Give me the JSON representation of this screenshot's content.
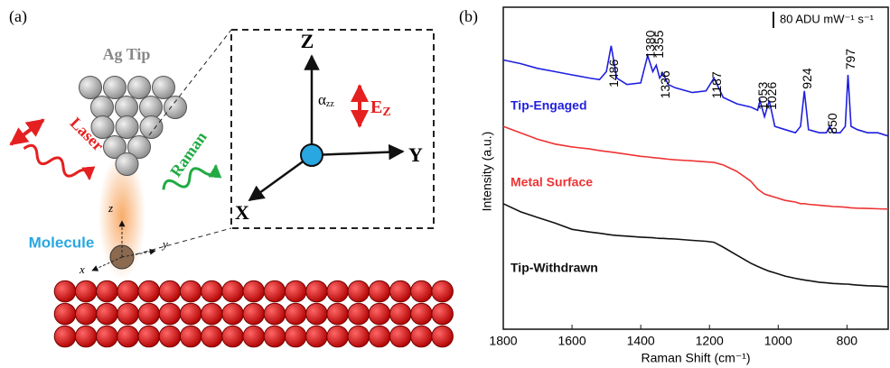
{
  "panel_a": {
    "label": "(a)",
    "tip": "Ag Tip",
    "laser": "Laser",
    "raman": "Raman",
    "molecule": "Molecule",
    "mol_axes": [
      "z",
      "y",
      "x"
    ],
    "frame_axes": [
      "Z",
      "Y",
      "X"
    ],
    "alpha": "α",
    "alpha_sub": "zz",
    "field": "E",
    "field_sub": "Z"
  },
  "chart_data": {
    "type": "line",
    "panel_label": "(b)",
    "xlabel": "Raman Shift (cm⁻¹)",
    "ylabel": "Intensity (a.u.)",
    "scale_bar": "80 ADU mW⁻¹ s⁻¹",
    "xlim": [
      1800,
      680
    ],
    "xticks": [
      1800,
      1600,
      1400,
      1200,
      1000,
      800
    ],
    "ylim": [
      0,
      100
    ],
    "peaks": [
      1486,
      1380,
      1355,
      1336,
      1187,
      1053,
      1026,
      924,
      850,
      797
    ],
    "x": [
      1800,
      1750,
      1700,
      1650,
      1600,
      1550,
      1520,
      1500,
      1486,
      1470,
      1440,
      1400,
      1380,
      1365,
      1355,
      1345,
      1336,
      1320,
      1300,
      1250,
      1210,
      1187,
      1160,
      1120,
      1080,
      1060,
      1053,
      1040,
      1026,
      1010,
      980,
      950,
      935,
      924,
      912,
      880,
      860,
      850,
      840,
      820,
      805,
      797,
      788,
      770,
      740,
      710,
      680
    ],
    "series": [
      {
        "name": "Tip-Engaged",
        "color": "#1f1fe0",
        "values": [
          83.6,
          82.5,
          81,
          80,
          79,
          78,
          77.5,
          80,
          88,
          78,
          76,
          76.5,
          85,
          80,
          82,
          78,
          79.5,
          76,
          75,
          73.5,
          74,
          78,
          72,
          70,
          69,
          68,
          71,
          66,
          71,
          63,
          62,
          61,
          63,
          74,
          62,
          61,
          61,
          63,
          61,
          61,
          63,
          79,
          63,
          62,
          61,
          61,
          60
        ]
      },
      {
        "name": "Metal Surface",
        "color": "#ee3333",
        "values": [
          63,
          61,
          59,
          57.5,
          56.6,
          56,
          55.5,
          55.2,
          55,
          54.8,
          54.3,
          53.7,
          53.5,
          53.3,
          53.2,
          53.1,
          53,
          52.8,
          52.6,
          52.3,
          52,
          51.8,
          51,
          49,
          46,
          43.5,
          43,
          42,
          41.5,
          41,
          40,
          39.5,
          39,
          39,
          38.8,
          38.5,
          38.3,
          38.2,
          38.1,
          38,
          37.9,
          37.8,
          37.7,
          37.6,
          37.5,
          37.4,
          37.3
        ]
      },
      {
        "name": "Tip-Withdrawn",
        "color": "#111111",
        "values": [
          39,
          36.5,
          34.7,
          33,
          31,
          30.2,
          29.8,
          29.5,
          29.3,
          29.1,
          28.9,
          28.6,
          28.5,
          28.4,
          28.3,
          28.2,
          28.2,
          28.1,
          28,
          27.6,
          27.3,
          27,
          25.5,
          23,
          20.5,
          19.5,
          19.2,
          18.6,
          18,
          17.5,
          16.5,
          15.8,
          15.5,
          15.3,
          15.1,
          14.6,
          14.4,
          14.3,
          14.2,
          14.1,
          14,
          14,
          13.9,
          13.7,
          13.5,
          13.4,
          13.2
        ]
      }
    ]
  }
}
